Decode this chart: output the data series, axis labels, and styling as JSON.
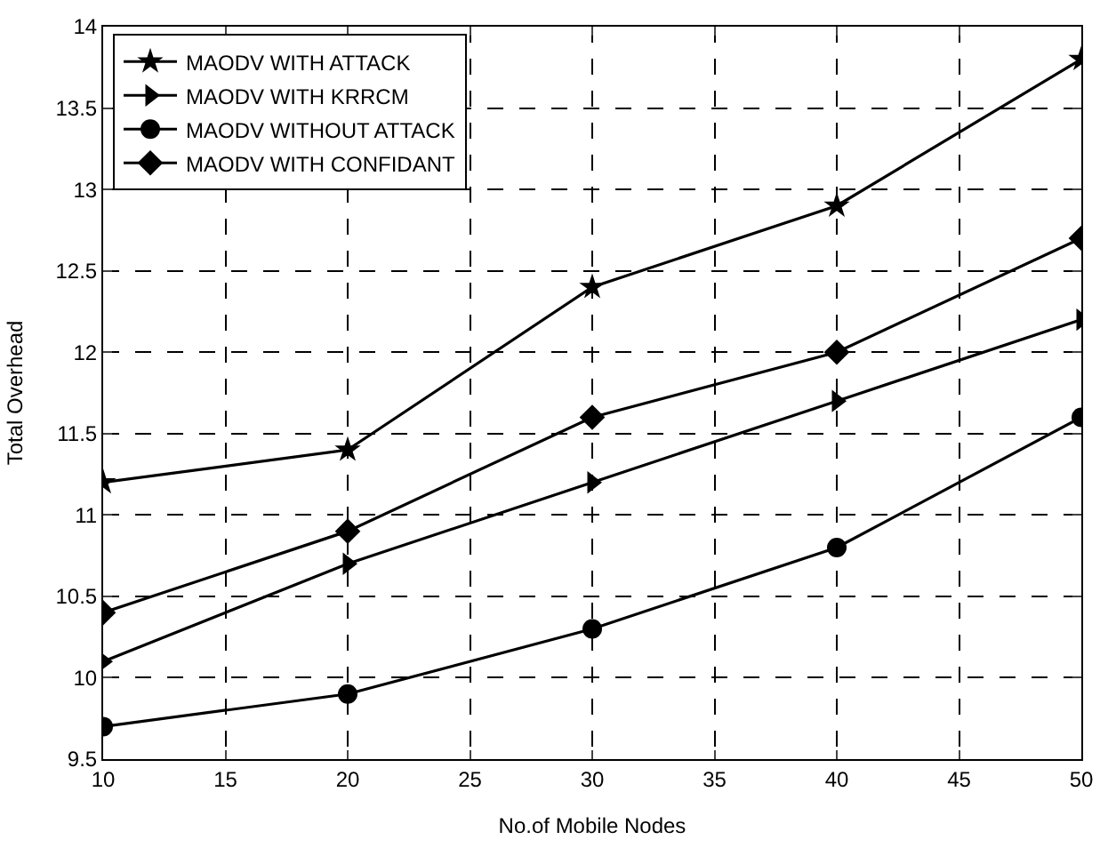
{
  "chart_data": {
    "type": "line",
    "xlabel": "No.of Mobile Nodes",
    "ylabel": "Total Overhead",
    "x": [
      10,
      20,
      30,
      40,
      50
    ],
    "series": [
      {
        "name": "MAODV WITH ATTACK",
        "color": "#000000",
        "marker": "star",
        "values": [
          11.2,
          11.4,
          12.4,
          12.9,
          13.8
        ]
      },
      {
        "name": "MAODV WITH KRRCM",
        "color": "#000000",
        "marker": "triangle",
        "values": [
          10.1,
          10.7,
          11.2,
          11.7,
          12.2
        ]
      },
      {
        "name": "MAODV WITHOUT ATTACK",
        "color": "#000000",
        "marker": "circle",
        "values": [
          9.7,
          9.9,
          10.3,
          10.8,
          11.6
        ]
      },
      {
        "name": "MAODV WITH CONFIDANT",
        "color": "#000000",
        "marker": "diamond",
        "values": [
          10.4,
          10.9,
          11.6,
          12.0,
          12.7
        ]
      }
    ],
    "xlim": [
      10,
      50
    ],
    "xticks": [
      10,
      15,
      20,
      25,
      30,
      35,
      40,
      45,
      50
    ],
    "ylim": [
      9.5,
      14
    ],
    "yticks": [
      9.5,
      10,
      10.5,
      11,
      11.5,
      12,
      12.5,
      13,
      13.5,
      14
    ],
    "grid": true,
    "legend": "top left",
    "line_style": "solid"
  }
}
